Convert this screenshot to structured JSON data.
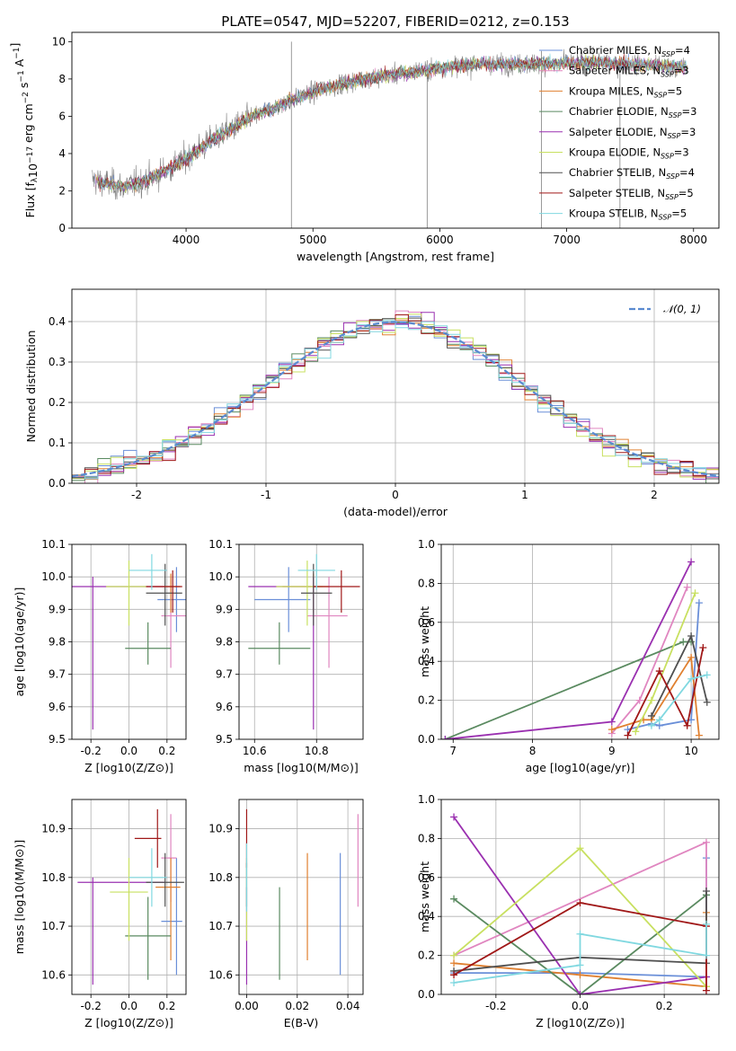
{
  "chart_data": [
    {
      "id": "spectrum",
      "type": "line",
      "title": "PLATE=0547, MJD=52207, FIBERID=0212, z=0.153",
      "xlabel": "wavelength [Angstrom, rest frame]",
      "ylabel": "Flux [f_λ10^-17 erg cm^-2 s^-1 A^-1]",
      "xlim": [
        3100,
        8200
      ],
      "ylim": [
        0,
        10.5
      ],
      "xticks": [
        4000,
        5000,
        6000,
        7000,
        8000
      ],
      "yticks": [
        0,
        2,
        4,
        6,
        8,
        10
      ],
      "grid": false,
      "legend_position": "right",
      "data_color": "#808080",
      "continuum": {
        "x": [
          3260,
          3500,
          3700,
          3950,
          4200,
          4500,
          4800,
          5100,
          5400,
          5700,
          6000,
          6300,
          6600,
          6900,
          7200,
          7500,
          7800,
          7950
        ],
        "y": [
          2.6,
          2.2,
          2.6,
          3.5,
          4.7,
          5.9,
          6.8,
          7.5,
          8.0,
          8.3,
          8.6,
          8.8,
          8.8,
          8.8,
          8.9,
          8.8,
          8.7,
          8.6
        ]
      },
      "series": [
        {
          "name": "Chabrier MILES, N_SSP=4",
          "color": "#6a8fd8"
        },
        {
          "name": "Salpeter MILES, N_SSP=3",
          "color": "#e086c0"
        },
        {
          "name": "Kroupa MILES, N_SSP=5",
          "color": "#e08030"
        },
        {
          "name": "Chabrier ELODIE, N_SSP=3",
          "color": "#5a8a60"
        },
        {
          "name": "Salpeter ELODIE, N_SSP=3",
          "color": "#9a30b0"
        },
        {
          "name": "Kroupa ELODIE, N_SSP=3",
          "color": "#c8e060"
        },
        {
          "name": "Chabrier STELIB, N_SSP=4",
          "color": "#505050"
        },
        {
          "name": "Salpeter STELIB, N_SSP=5",
          "color": "#a01818"
        },
        {
          "name": "Kroupa STELIB, N_SSP=5",
          "color": "#80d8e0"
        }
      ]
    },
    {
      "id": "residuals",
      "type": "line",
      "xlabel": "(data-model)/error",
      "ylabel": "Normed distribution",
      "xlim": [
        -2.5,
        2.5
      ],
      "ylim": [
        0,
        0.48
      ],
      "xticks": [
        -2,
        -1,
        0,
        1,
        2
      ],
      "yticks": [
        0.0,
        0.1,
        0.2,
        0.3,
        0.4
      ],
      "grid": true,
      "legend": "𝒩(0, 1)",
      "legend_position": "top-right",
      "normal_color": "#5a8ad0"
    },
    {
      "id": "age_vs_Z",
      "type": "scatter",
      "xlabel": "Z [log10(Z/Z⊙)]",
      "ylabel": "age  [log10(age/yr)]",
      "xlim": [
        -0.3,
        0.3
      ],
      "ylim": [
        9.5,
        10.1
      ],
      "xticks": [
        -0.2,
        0.0,
        0.2
      ],
      "yticks": [
        9.5,
        9.6,
        9.7,
        9.8,
        9.9,
        10.0,
        10.1
      ],
      "grid": true,
      "points": [
        {
          "color": "#6a8fd8",
          "x": 0.25,
          "xerr": [
            0.1,
            0.05
          ],
          "y": 9.93,
          "yerr": [
            0.1,
            0.1
          ]
        },
        {
          "color": "#e086c0",
          "x": 0.22,
          "xerr": [
            0.05,
            0.08
          ],
          "y": 9.88,
          "yerr": [
            0.16,
            0.12
          ]
        },
        {
          "color": "#e08030",
          "x": 0.22,
          "xerr": [
            0.1,
            0.05
          ],
          "y": 9.97,
          "yerr": [
            0.08,
            0.04
          ]
        },
        {
          "color": "#5a8a60",
          "x": 0.1,
          "xerr": [
            0.12,
            0.12
          ],
          "y": 9.78,
          "yerr": [
            0.05,
            0.08
          ]
        },
        {
          "color": "#9a30b0",
          "x": -0.19,
          "xerr": [
            0.12,
            0.38
          ],
          "y": 9.97,
          "yerr": [
            0.44,
            0.03
          ]
        },
        {
          "color": "#c8e060",
          "x": 0.0,
          "xerr": [
            0.12,
            0.1
          ],
          "y": 9.97,
          "yerr": [
            0.12,
            0.08
          ]
        },
        {
          "color": "#505050",
          "x": 0.19,
          "xerr": [
            0.1,
            0.09
          ],
          "y": 9.95,
          "yerr": [
            0.1,
            0.09
          ]
        },
        {
          "color": "#a01818",
          "x": 0.23,
          "xerr": [
            0.14,
            0.05
          ],
          "y": 9.97,
          "yerr": [
            0.08,
            0.05
          ]
        },
        {
          "color": "#80d8e0",
          "x": 0.12,
          "xerr": [
            0.12,
            0.08
          ],
          "y": 10.02,
          "yerr": [
            0.06,
            0.05
          ]
        }
      ]
    },
    {
      "id": "age_vs_mass",
      "type": "scatter",
      "xlabel": "mass [log10(M/M⊙)]",
      "xlim": [
        10.55,
        10.95
      ],
      "ylim": [
        9.5,
        10.1
      ],
      "xticks": [
        10.6,
        10.8
      ],
      "yticks": [
        9.5,
        9.6,
        9.7,
        9.8,
        9.9,
        10.0,
        10.1
      ],
      "grid": true,
      "points": [
        {
          "color": "#6a8fd8",
          "x": 10.71,
          "xerr": [
            0.11,
            0.07
          ],
          "y": 9.93,
          "yerr": [
            0.1,
            0.1
          ]
        },
        {
          "color": "#e086c0",
          "x": 10.84,
          "xerr": [
            0.07,
            0.06
          ],
          "y": 9.88,
          "yerr": [
            0.16,
            0.12
          ]
        },
        {
          "color": "#e08030",
          "x": 10.79,
          "xerr": [
            0.1,
            0.05
          ],
          "y": 9.97,
          "yerr": [
            0.08,
            0.04
          ]
        },
        {
          "color": "#5a8a60",
          "x": 10.68,
          "xerr": [
            0.1,
            0.1
          ],
          "y": 9.78,
          "yerr": [
            0.05,
            0.08
          ]
        },
        {
          "color": "#9a30b0",
          "x": 10.79,
          "xerr": [
            0.21,
            0.01
          ],
          "y": 9.97,
          "yerr": [
            0.44,
            0.03
          ]
        },
        {
          "color": "#c8e060",
          "x": 10.77,
          "xerr": [
            0.1,
            0.05
          ],
          "y": 9.97,
          "yerr": [
            0.12,
            0.08
          ]
        },
        {
          "color": "#505050",
          "x": 10.79,
          "xerr": [
            0.04,
            0.06
          ],
          "y": 9.95,
          "yerr": [
            0.1,
            0.09
          ]
        },
        {
          "color": "#a01818",
          "x": 10.88,
          "xerr": [
            0.09,
            0.06
          ],
          "y": 9.97,
          "yerr": [
            0.08,
            0.05
          ]
        },
        {
          "color": "#80d8e0",
          "x": 10.8,
          "xerr": [
            0.06,
            0.06
          ],
          "y": 10.02,
          "yerr": [
            0.06,
            0.05
          ]
        }
      ]
    },
    {
      "id": "massweight_vs_age",
      "type": "line",
      "xlabel": "age  [log10(age/yr)]",
      "ylabel": "mass weight",
      "xlim": [
        6.85,
        10.35
      ],
      "ylim": [
        0,
        1.0
      ],
      "xticks": [
        7,
        8,
        9,
        10
      ],
      "yticks": [
        0.0,
        0.2,
        0.4,
        0.6,
        0.8,
        1.0
      ],
      "grid": true,
      "series": [
        {
          "color": "#6a8fd8",
          "x": [
            9.2,
            9.5,
            9.6,
            10.0,
            10.1
          ],
          "y": [
            0.05,
            0.08,
            0.07,
            0.1,
            0.7
          ]
        },
        {
          "color": "#e086c0",
          "x": [
            9.0,
            9.35,
            9.95
          ],
          "y": [
            0.03,
            0.2,
            0.78
          ]
        },
        {
          "color": "#e08030",
          "x": [
            9.0,
            9.4,
            9.5,
            10.0,
            10.1
          ],
          "y": [
            0.05,
            0.1,
            0.1,
            0.42,
            0.02
          ]
        },
        {
          "color": "#5a8a60",
          "x": [
            6.9,
            9.9,
            10.0
          ],
          "y": [
            0.0,
            0.5,
            0.5
          ]
        },
        {
          "color": "#9a30b0",
          "x": [
            6.9,
            9.0,
            10.0
          ],
          "y": [
            0.0,
            0.09,
            0.91
          ]
        },
        {
          "color": "#c8e060",
          "x": [
            9.3,
            9.5,
            10.05
          ],
          "y": [
            0.04,
            0.2,
            0.75
          ]
        },
        {
          "color": "#505050",
          "x": [
            9.5,
            10.0,
            10.2
          ],
          "y": [
            0.12,
            0.53,
            0.19
          ]
        },
        {
          "color": "#a01818",
          "x": [
            9.2,
            9.6,
            9.95,
            10.15
          ],
          "y": [
            0.02,
            0.35,
            0.07,
            0.47
          ]
        },
        {
          "color": "#80d8e0",
          "x": [
            9.5,
            9.6,
            10.0,
            10.2
          ],
          "y": [
            0.07,
            0.1,
            0.31,
            0.33
          ]
        }
      ]
    },
    {
      "id": "mass_vs_Z",
      "type": "scatter",
      "xlabel": "Z [log10(Z/Z⊙)]",
      "ylabel": "mass [log10(M/M⊙)]",
      "xlim": [
        -0.3,
        0.3
      ],
      "ylim": [
        10.56,
        10.96
      ],
      "xticks": [
        -0.2,
        0.0,
        0.2
      ],
      "yticks": [
        10.6,
        10.7,
        10.8,
        10.9
      ],
      "grid": true,
      "points": [
        {
          "color": "#6a8fd8",
          "x": 0.25,
          "xerr": [
            0.08,
            0.03
          ],
          "y": 10.71,
          "yerr": [
            0.11,
            0.13
          ]
        },
        {
          "color": "#e086c0",
          "x": 0.22,
          "xerr": [
            0.05,
            0.03
          ],
          "y": 10.84,
          "yerr": [
            0.09,
            0.09
          ]
        },
        {
          "color": "#e08030",
          "x": 0.22,
          "xerr": [
            0.08,
            0.05
          ],
          "y": 10.78,
          "yerr": [
            0.15,
            0.06
          ]
        },
        {
          "color": "#5a8a60",
          "x": 0.1,
          "xerr": [
            0.12,
            0.12
          ],
          "y": 10.68,
          "yerr": [
            0.09,
            0.08
          ]
        },
        {
          "color": "#9a30b0",
          "x": -0.19,
          "xerr": [
            0.08,
            0.38
          ],
          "y": 10.79,
          "yerr": [
            0.21,
            0.01
          ]
        },
        {
          "color": "#c8e060",
          "x": 0.0,
          "xerr": [
            0.1,
            0.1
          ],
          "y": 10.77,
          "yerr": [
            0.1,
            0.07
          ]
        },
        {
          "color": "#505050",
          "x": 0.19,
          "xerr": [
            0.1,
            0.1
          ],
          "y": 10.79,
          "yerr": [
            0.05,
            0.06
          ]
        },
        {
          "color": "#a01818",
          "x": 0.15,
          "xerr": [
            0.12,
            0.02
          ],
          "y": 10.88,
          "yerr": [
            0.06,
            0.06
          ]
        },
        {
          "color": "#80d8e0",
          "x": 0.12,
          "xerr": [
            0.12,
            0.08
          ],
          "y": 10.8,
          "yerr": [
            0.06,
            0.06
          ]
        }
      ]
    },
    {
      "id": "mass_vs_ebv",
      "type": "scatter",
      "xlabel": "E(B-V)",
      "xlim": [
        -0.003,
        0.046
      ],
      "ylim": [
        10.56,
        10.96
      ],
      "xticks": [
        0.0,
        0.02,
        0.04
      ],
      "yticks": [
        10.6,
        10.7,
        10.8,
        10.9
      ],
      "grid": true,
      "points": [
        {
          "color": "#6a8fd8",
          "x": 0.037,
          "y": 10.72,
          "yerr": [
            0.12,
            0.13
          ]
        },
        {
          "color": "#e086c0",
          "x": 0.044,
          "y": 10.83,
          "yerr": [
            0.09,
            0.1
          ]
        },
        {
          "color": "#e08030",
          "x": 0.024,
          "y": 10.74,
          "yerr": [
            0.11,
            0.11
          ]
        },
        {
          "color": "#5a8a60",
          "x": 0.013,
          "y": 10.68,
          "yerr": [
            0.09,
            0.1
          ]
        },
        {
          "color": "#9a30b0",
          "x": 0.0,
          "y": 10.68,
          "yerr": [
            0.1,
            0.1
          ]
        },
        {
          "color": "#c8e060",
          "x": 0.0,
          "y": 10.77,
          "yerr": [
            0.1,
            0.07
          ]
        },
        {
          "color": "#505050",
          "x": 0.0,
          "y": 10.78,
          "yerr": [
            0.04,
            0.05
          ]
        },
        {
          "color": "#a01818",
          "x": 0.0,
          "y": 10.88,
          "yerr": [
            0.06,
            0.06
          ]
        },
        {
          "color": "#80d8e0",
          "x": 0.0,
          "y": 10.8,
          "yerr": [
            0.07,
            0.07
          ]
        }
      ]
    },
    {
      "id": "massweight_vs_Z",
      "type": "line",
      "xlabel": "Z [log10(Z/Z⊙)]",
      "ylabel": "mass weight",
      "xlim": [
        -0.33,
        0.33
      ],
      "ylim": [
        0,
        1.0
      ],
      "xticks": [
        -0.2,
        0.0,
        0.2
      ],
      "yticks": [
        0.0,
        0.2,
        0.4,
        0.6,
        0.8,
        1.0
      ],
      "grid": true,
      "series": [
        {
          "color": "#6a8fd8",
          "x": [
            -0.3,
            0.0,
            0.3,
            0.3
          ],
          "y": [
            0.11,
            0.11,
            0.09,
            0.7
          ]
        },
        {
          "color": "#e086c0",
          "x": [
            -0.3,
            0.3,
            0.3
          ],
          "y": [
            0.2,
            0.78,
            0.02
          ]
        },
        {
          "color": "#e08030",
          "x": [
            -0.3,
            0.0,
            0.3,
            0.3
          ],
          "y": [
            0.16,
            0.1,
            0.04,
            0.42
          ]
        },
        {
          "color": "#5a8a60",
          "x": [
            -0.3,
            0.0,
            0.3
          ],
          "y": [
            0.49,
            0.0,
            0.51
          ]
        },
        {
          "color": "#9a30b0",
          "x": [
            -0.3,
            0.0,
            0.3
          ],
          "y": [
            0.91,
            0.0,
            0.09
          ]
        },
        {
          "color": "#c8e060",
          "x": [
            -0.3,
            0.0,
            0.3
          ],
          "y": [
            0.2,
            0.75,
            0.04
          ]
        },
        {
          "color": "#505050",
          "x": [
            -0.3,
            0.0,
            0.3,
            0.3
          ],
          "y": [
            0.12,
            0.19,
            0.16,
            0.53
          ]
        },
        {
          "color": "#a01818",
          "x": [
            -0.3,
            0.0,
            0.3,
            0.3
          ],
          "y": [
            0.1,
            0.47,
            0.35,
            0.02
          ]
        },
        {
          "color": "#80d8e0",
          "x": [
            -0.3,
            0.0,
            0.0,
            0.3,
            0.3
          ],
          "y": [
            0.06,
            0.15,
            0.31,
            0.2,
            0.36
          ]
        }
      ]
    }
  ]
}
